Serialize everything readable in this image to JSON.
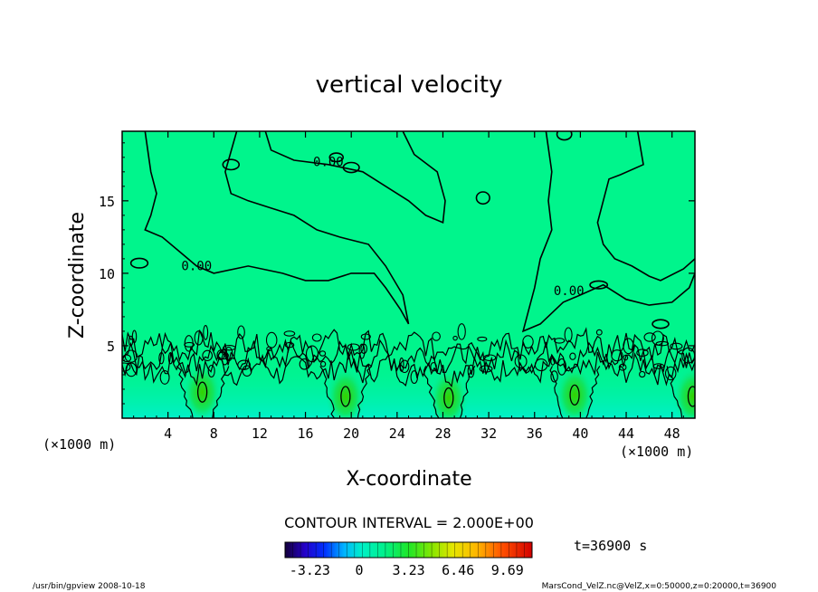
{
  "chart_data": {
    "type": "heatmap",
    "title": "vertical velocity",
    "xlabel": "X-coordinate",
    "ylabel": "Z-coordinate",
    "x_units_left": "(×1000 m)",
    "x_units_right": "(×1000 m)",
    "xlim": [
      0,
      50
    ],
    "ylim": [
      0,
      19.8
    ],
    "x_ticks": [
      4,
      8,
      12,
      16,
      20,
      24,
      28,
      32,
      36,
      40,
      44,
      48
    ],
    "y_ticks": [
      5,
      10,
      15
    ],
    "contour_interval_text": "CONTOUR INTERVAL = 2.000E+00",
    "contour_labels": [
      {
        "text": "0.00",
        "x": 18.0,
        "y": 17.4
      },
      {
        "text": "0.00",
        "x": 6.5,
        "y": 10.2
      },
      {
        "text": "0.00",
        "x": 39.0,
        "y": 8.5
      }
    ],
    "colorbar": {
      "min": -4.85,
      "max": 11.3,
      "tick_labels": [
        "-3.23",
        "0",
        "3.23",
        "6.46",
        "9.69"
      ],
      "tick_values": [
        -3.23,
        0,
        3.23,
        6.46,
        9.69
      ]
    },
    "updraft_maxima": [
      {
        "x": 7.0,
        "z": 1.8,
        "w": 2.5
      },
      {
        "x": 19.5,
        "z": 1.5,
        "w": 1.8
      },
      {
        "x": 28.5,
        "z": 1.4,
        "w": 2.0
      },
      {
        "x": 39.5,
        "z": 1.6,
        "w": 2.6
      },
      {
        "x": 49.8,
        "z": 1.5,
        "w": 2.2
      }
    ],
    "time_text": "t=36900 s",
    "colors": {
      "background_field": "#00f58c",
      "zero_level": "#00f0a8"
    }
  },
  "footer": {
    "left": "/usr/bin/gpview   2008-10-18",
    "right": "MarsCond_VelZ.nc@VelZ,x=0:50000,z=0:20000,t=36900"
  }
}
